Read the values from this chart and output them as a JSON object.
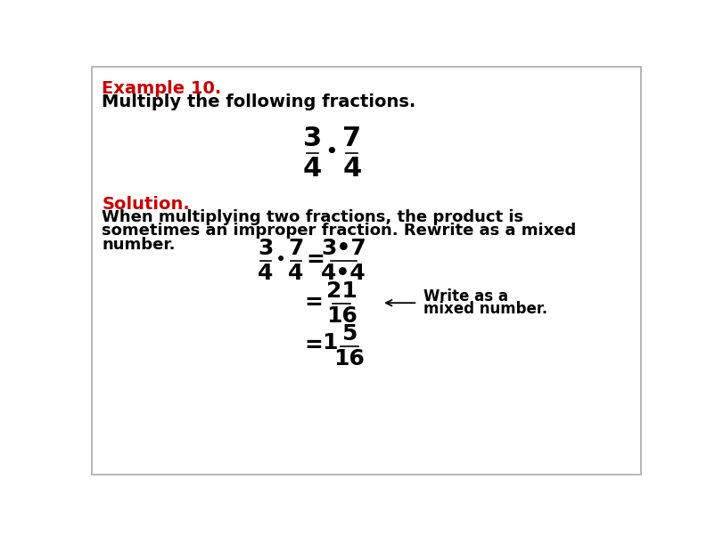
{
  "title_red": "Example 10.",
  "title_black": "Multiply the following fractions.",
  "solution_red": "Solution.",
  "solution_lines": [
    "When multiplying two fractions, the product is",
    "sometimes an improper fraction. Rewrite as a mixed",
    "number."
  ],
  "bg_color": "#FFFFFF",
  "border_color": "#AAAAAA",
  "red_color": "#CC0000",
  "black_color": "#000000",
  "font_size_header": 14,
  "font_size_body": 13,
  "font_size_math_large": 22,
  "font_size_math_medium": 18,
  "font_size_annotation": 12
}
